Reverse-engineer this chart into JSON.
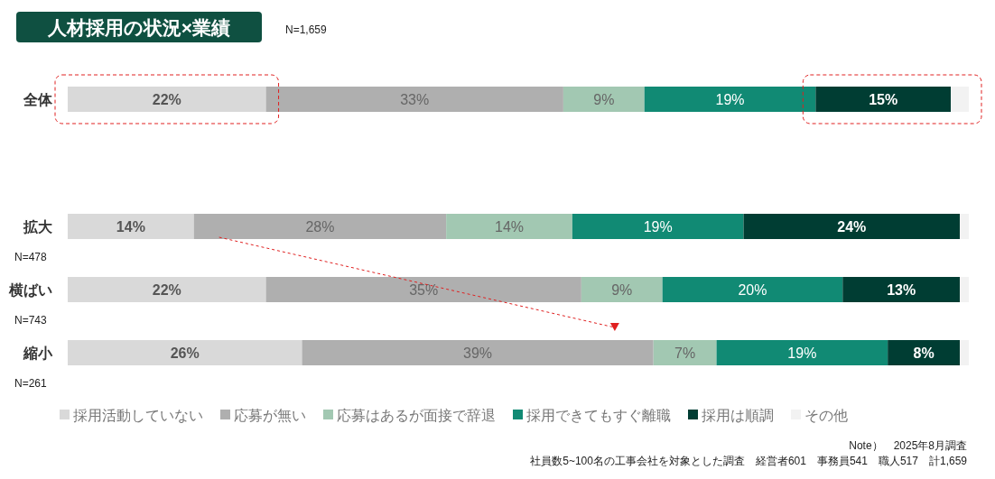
{
  "chart_data": {
    "type": "bar",
    "orientation": "horizontal",
    "stacked": true,
    "title": "人材採用の状況×業績",
    "subtitle": "N=1,659",
    "categories": [
      "全体",
      "拡大",
      "横ばい",
      "縮小"
    ],
    "series": [
      {
        "name": "採用活動していない",
        "color": "#d9d9d9",
        "values": [
          22,
          14,
          22,
          26
        ],
        "value_labels": [
          "22%",
          "14%",
          "22%",
          "26%"
        ]
      },
      {
        "name": "応募が無い",
        "color": "#afafaf",
        "values": [
          33,
          28,
          35,
          39
        ],
        "value_labels": [
          "33%",
          "28%",
          "35%",
          "39%"
        ]
      },
      {
        "name": "応募はあるが面接で辞退",
        "color": "#a2c8b2",
        "values": [
          9,
          14,
          9,
          7
        ],
        "value_labels": [
          "9%",
          "14%",
          "9%",
          "7%"
        ]
      },
      {
        "name": "採用できてもすぐ離職",
        "color": "#118a74",
        "values": [
          19,
          19,
          20,
          19
        ],
        "value_labels": [
          "19%",
          "19%",
          "20%",
          "19%"
        ]
      },
      {
        "name": "採用は順調",
        "color": "#003d33",
        "values": [
          15,
          24,
          13,
          8
        ],
        "value_labels": [
          "15%",
          "24%",
          "13%",
          "8%"
        ]
      },
      {
        "name": "その他",
        "color": "#f2f2f2",
        "values": [
          2,
          1,
          1,
          1
        ],
        "value_labels": [
          null,
          null,
          null,
          null
        ]
      }
    ],
    "legend": "bottom",
    "annotations": [
      "N=478",
      "N=743",
      "N=261",
      "Note）　2025年8月調査",
      "社員数5~100名の工事会社を対象とした調査　経営者601　事務員541　職人517　計1,659"
    ]
  }
}
